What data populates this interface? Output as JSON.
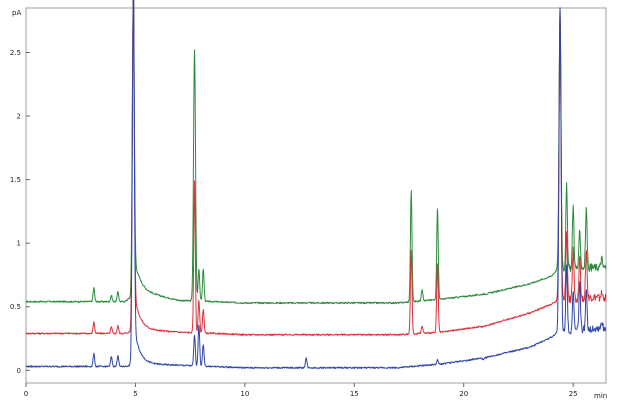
{
  "chart_data": {
    "type": "line",
    "title": "",
    "xlabel": "",
    "ylabel": "",
    "y_unit": "pA",
    "x_unit": "min",
    "xlim": [
      0,
      26.5
    ],
    "ylim": [
      -0.1,
      2.85
    ],
    "x_ticks": [
      0,
      5,
      10,
      15,
      20,
      25
    ],
    "y_ticks": [
      0,
      0.5,
      1,
      1.5,
      2,
      2.5
    ],
    "x_tick_labels": [
      "0",
      "5",
      "10",
      "15",
      "20",
      "25"
    ],
    "y_tick_labels": [
      "0",
      "0.5",
      "1",
      "1.5",
      "2",
      "2.5"
    ],
    "grid": false,
    "legend": "none",
    "series": [
      {
        "color": "#2e8b3e",
        "baseline": [
          [
            0,
            0.54
          ],
          [
            4.5,
            0.54
          ],
          [
            5.2,
            0.62
          ],
          [
            7,
            0.55
          ],
          [
            10,
            0.53
          ],
          [
            15,
            0.53
          ],
          [
            17,
            0.53
          ],
          [
            19,
            0.56
          ],
          [
            21,
            0.6
          ],
          [
            23,
            0.68
          ],
          [
            24,
            0.74
          ],
          [
            24.3,
            0.8
          ],
          [
            26,
            0.81
          ],
          [
            26.5,
            0.81
          ]
        ],
        "peaks": [
          [
            3.1,
            0.65
          ],
          [
            3.9,
            0.59
          ],
          [
            4.2,
            0.62
          ],
          [
            4.9,
            2.85
          ],
          [
            7.7,
            2.53
          ],
          [
            7.9,
            0.8
          ],
          [
            8.1,
            0.8
          ],
          [
            17.6,
            1.42
          ],
          [
            18.1,
            0.64
          ],
          [
            18.8,
            1.28
          ],
          [
            20.9,
            0.6
          ],
          [
            24.4,
            2.85
          ],
          [
            24.7,
            1.45
          ],
          [
            25.0,
            1.3
          ],
          [
            25.3,
            1.1
          ],
          [
            25.6,
            1.28
          ],
          [
            26.3,
            0.88
          ]
        ]
      },
      {
        "color": "#d9333a",
        "baseline": [
          [
            0,
            0.29
          ],
          [
            4.5,
            0.29
          ],
          [
            5.2,
            0.32
          ],
          [
            7,
            0.3
          ],
          [
            10,
            0.28
          ],
          [
            15,
            0.28
          ],
          [
            17,
            0.28
          ],
          [
            19,
            0.3
          ],
          [
            21,
            0.35
          ],
          [
            23,
            0.45
          ],
          [
            24,
            0.52
          ],
          [
            24.3,
            0.55
          ],
          [
            26,
            0.57
          ],
          [
            26.5,
            0.57
          ]
        ],
        "peaks": [
          [
            3.1,
            0.38
          ],
          [
            3.9,
            0.34
          ],
          [
            4.2,
            0.35
          ],
          [
            4.9,
            2.85
          ],
          [
            7.7,
            1.5
          ],
          [
            7.9,
            0.55
          ],
          [
            8.1,
            0.48
          ],
          [
            17.6,
            0.95
          ],
          [
            18.1,
            0.35
          ],
          [
            18.8,
            0.84
          ],
          [
            20.9,
            0.34
          ],
          [
            24.4,
            2.85
          ],
          [
            24.7,
            1.12
          ],
          [
            25.0,
            0.96
          ],
          [
            25.3,
            0.9
          ],
          [
            25.6,
            0.95
          ],
          [
            26.3,
            0.6
          ]
        ]
      },
      {
        "color": "#2f46a8",
        "baseline": [
          [
            0,
            0.03
          ],
          [
            4.5,
            0.03
          ],
          [
            5.2,
            0.05
          ],
          [
            7,
            0.04
          ],
          [
            10,
            0.02
          ],
          [
            15,
            0.02
          ],
          [
            17,
            0.02
          ],
          [
            19,
            0.05
          ],
          [
            21,
            0.1
          ],
          [
            23,
            0.18
          ],
          [
            24,
            0.26
          ],
          [
            24.3,
            0.3
          ],
          [
            26,
            0.33
          ],
          [
            26.5,
            0.33
          ]
        ],
        "peaks": [
          [
            3.1,
            0.13
          ],
          [
            3.9,
            0.11
          ],
          [
            4.2,
            0.12
          ],
          [
            4.9,
            2.85
          ],
          [
            7.7,
            0.28
          ],
          [
            7.9,
            0.36
          ],
          [
            8.1,
            0.2
          ],
          [
            12.8,
            0.1
          ],
          [
            18.8,
            0.08
          ],
          [
            20.9,
            0.08
          ],
          [
            24.4,
            2.85
          ],
          [
            24.7,
            0.85
          ],
          [
            25.0,
            0.6
          ],
          [
            25.3,
            0.7
          ],
          [
            25.6,
            0.62
          ],
          [
            26.3,
            0.38
          ]
        ]
      }
    ]
  }
}
